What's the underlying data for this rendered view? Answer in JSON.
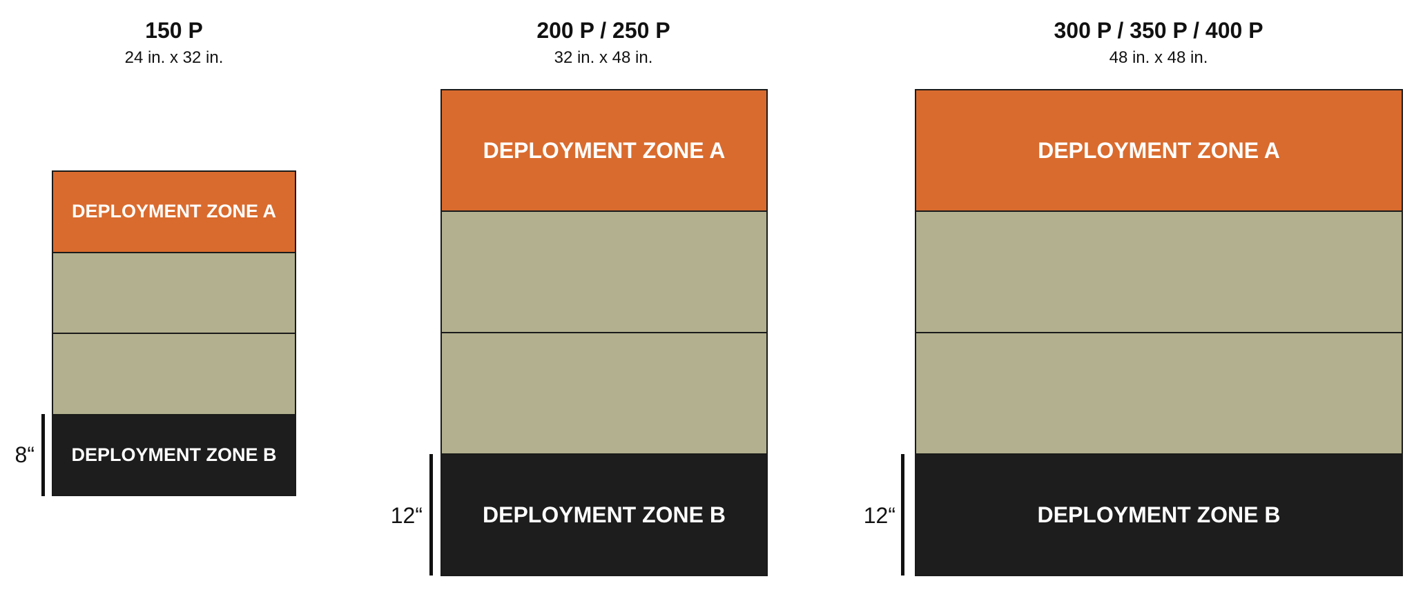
{
  "boards": [
    {
      "title": "150 P",
      "dimensions": "24 in. x 32 in.",
      "zone_a": "DEPLOYMENT ZONE A",
      "zone_b": "DEPLOYMENT ZONE B",
      "depth_label": "8“"
    },
    {
      "title": "200 P / 250 P",
      "dimensions": "32 in. x 48 in.",
      "zone_a": "DEPLOYMENT ZONE A",
      "zone_b": "DEPLOYMENT ZONE B",
      "depth_label": "12“"
    },
    {
      "title": "300 P / 350 P / 400 P",
      "dimensions": "48 in. x 48 in.",
      "zone_a": "DEPLOYMENT ZONE A",
      "zone_b": "DEPLOYMENT ZONE B",
      "depth_label": "12“"
    }
  ],
  "colors": {
    "zone_a": "#d96b2e",
    "zone_b": "#1c1d1c",
    "neutral": "#b2b08e"
  }
}
